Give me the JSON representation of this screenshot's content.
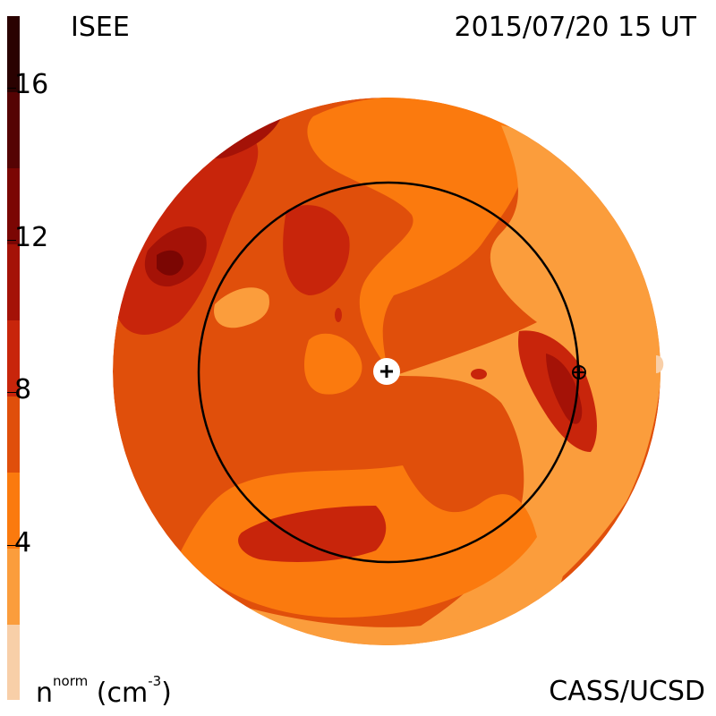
{
  "header": {
    "title_left": "ISEE",
    "title_right": "2015/07/20 15 UT"
  },
  "footer": {
    "units_base": "n",
    "units_sup": "norm",
    "units_rest": "(cm",
    "units_exp": "-3",
    "units_close": ")",
    "credit": "CASS/UCSD"
  },
  "colorbar": {
    "ticks": [
      "4",
      "8",
      "12",
      "16"
    ],
    "colors": [
      "#f8cfa8",
      "#fb9d3c",
      "#fb7a0e",
      "#e04f0b",
      "#c8250b",
      "#a41207",
      "#7b0603",
      "#550303",
      "#2a0201"
    ]
  },
  "map": {
    "markers": [
      "sun-marker",
      "earth-marker"
    ]
  }
}
